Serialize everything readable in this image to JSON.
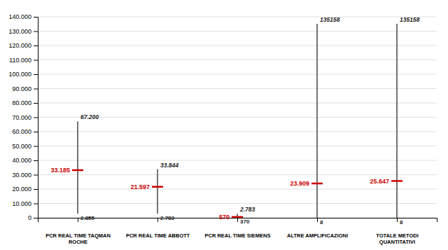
{
  "chart_data": {
    "type": "range",
    "categories": [
      "PCR REAL TIME TAQMAN\nROCHE",
      "PCR REAL TIME ABBOTT",
      "PCR REAL TIME SIEMENS",
      "ALTRE AMPLIFICAZIONI",
      "TOTALE METODI\nQUANTITATIVI"
    ],
    "values": [
      33185,
      21597,
      570,
      23909,
      25647
    ],
    "value_labels": [
      "33.185",
      "21.597",
      "570",
      "23.909",
      "25.647"
    ],
    "max": [
      67200,
      33844,
      2783,
      135158,
      135158
    ],
    "max_labels": [
      "67.200",
      "33.844",
      "2.783",
      "135158",
      "135158"
    ],
    "min": [
      2855,
      2783,
      370,
      8,
      8
    ],
    "min_labels": [
      "2.855",
      "2.783",
      "370",
      "8",
      "8"
    ],
    "color": "#cc0000",
    "ylim": [
      0,
      140000
    ],
    "yticks": [
      0,
      {
        "value": 10000,
        "label": "10.000"
      },
      {
        "value": 20000,
        "label": "20.000"
      },
      {
        "value": 30000,
        "label": "30.000"
      },
      {
        "value": 40000,
        "label": "40.000"
      },
      {
        "value": 50000,
        "label": "50.000"
      },
      {
        "value": 60000,
        "label": "60.000"
      },
      {
        "value": 70000,
        "label": "70.000"
      },
      {
        "value": 80000,
        "label": "80.000"
      },
      {
        "value": 90000,
        "label": "90.000"
      },
      {
        "value": 100000,
        "label": "100.000"
      },
      {
        "value": 110000,
        "label": "110.000"
      },
      {
        "value": 120000,
        "label": "120.000"
      },
      {
        "value": 130000,
        "label": "130.000"
      },
      {
        "value": 140000,
        "label": "140.000"
      }
    ],
    "grid": true
  }
}
